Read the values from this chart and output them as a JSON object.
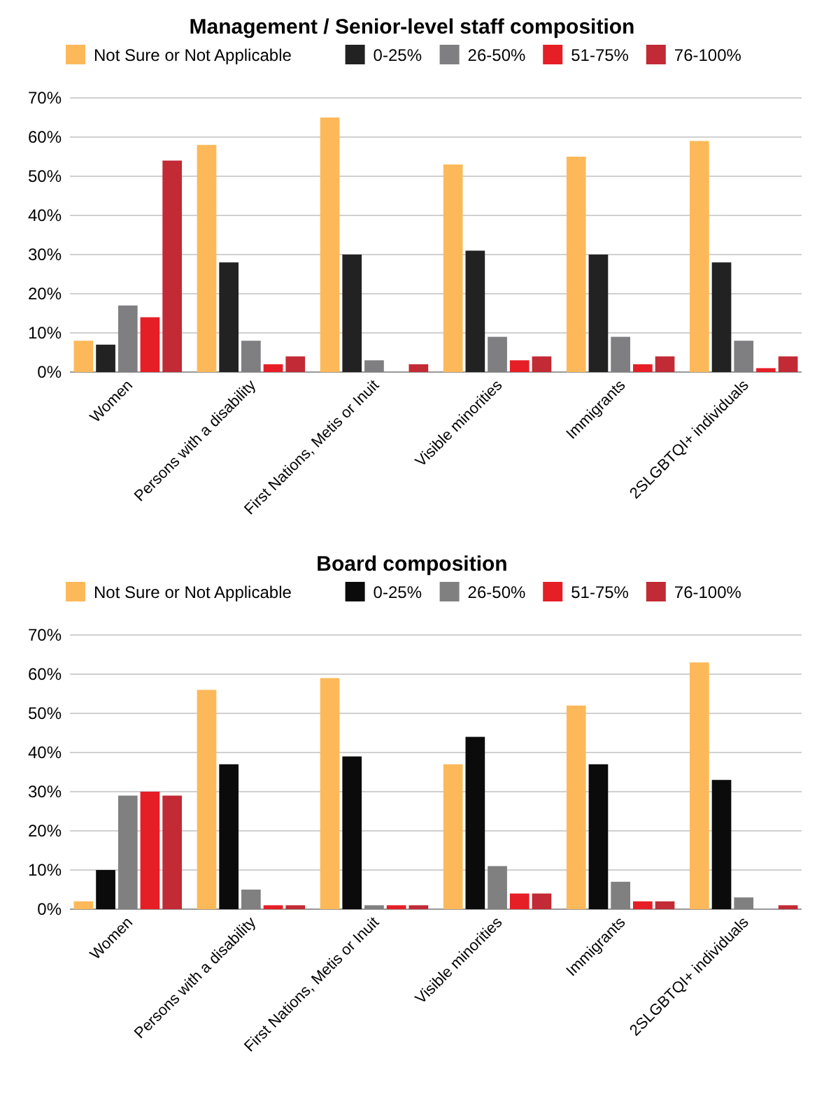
{
  "chart_data": [
    {
      "type": "bar",
      "title": "Management / Senior-level staff composition",
      "categories": [
        "Women",
        "Persons with a disability",
        "First Nations, Metis or Inuit",
        "Visible minorities",
        "Immigrants",
        "2SLGBTQI+ individuals"
      ],
      "series": [
        {
          "name": "Not Sure or Not Applicable",
          "color": "#fdb959",
          "values": [
            8,
            58,
            65,
            53,
            55,
            59
          ]
        },
        {
          "name": "0-25%",
          "color": "#222222",
          "values": [
            7,
            28,
            30,
            31,
            30,
            28
          ]
        },
        {
          "name": "26-50%",
          "color": "#7f7e80",
          "values": [
            17,
            8,
            3,
            9,
            9,
            8
          ]
        },
        {
          "name": "51-75%",
          "color": "#e61e26",
          "values": [
            14,
            2,
            0,
            3,
            2,
            1
          ]
        },
        {
          "name": "76-100%",
          "color": "#c22a35",
          "values": [
            54,
            4,
            2,
            4,
            4,
            4
          ]
        }
      ],
      "ylim": [
        0,
        70
      ],
      "yticks": [
        {
          "value": 0,
          "label": "0%"
        },
        {
          "value": 10,
          "label": "10%"
        },
        {
          "value": 20,
          "label": "20%"
        },
        {
          "value": 30,
          "label": "30%"
        },
        {
          "value": 40,
          "label": "40%"
        },
        {
          "value": 50,
          "label": "50%"
        },
        {
          "value": 60,
          "label": "60%"
        },
        {
          "value": 70,
          "label": "70%"
        }
      ],
      "grid": "y",
      "legend": "top"
    },
    {
      "type": "bar",
      "title": "Board composition",
      "categories": [
        "Women",
        "Persons with a disability",
        "First Nations, Metis or Inuit",
        "Visible minorities",
        "Immigrants",
        "2SLGBTQI+ individuals"
      ],
      "series": [
        {
          "name": "Not Sure or Not Applicable",
          "color": "#fdb959",
          "values": [
            2,
            56,
            59,
            37,
            52,
            63
          ]
        },
        {
          "name": "0-25%",
          "color": "#0b0b0b",
          "values": [
            10,
            37,
            39,
            44,
            37,
            33
          ]
        },
        {
          "name": "26-50%",
          "color": "#808080",
          "values": [
            29,
            5,
            1,
            11,
            7,
            3
          ]
        },
        {
          "name": "51-75%",
          "color": "#e61e26",
          "values": [
            30,
            1,
            1,
            4,
            2,
            0
          ]
        },
        {
          "name": "76-100%",
          "color": "#c22a35",
          "values": [
            29,
            1,
            1,
            4,
            2,
            1
          ]
        }
      ],
      "ylim": [
        0,
        70
      ],
      "yticks": [
        {
          "value": 0,
          "label": "0%"
        },
        {
          "value": 10,
          "label": "10%"
        },
        {
          "value": 20,
          "label": "20%"
        },
        {
          "value": 30,
          "label": "30%"
        },
        {
          "value": 40,
          "label": "40%"
        },
        {
          "value": 50,
          "label": "50%"
        },
        {
          "value": 60,
          "label": "60%"
        },
        {
          "value": 70,
          "label": "70%"
        }
      ],
      "grid": "y",
      "legend": "top"
    }
  ]
}
